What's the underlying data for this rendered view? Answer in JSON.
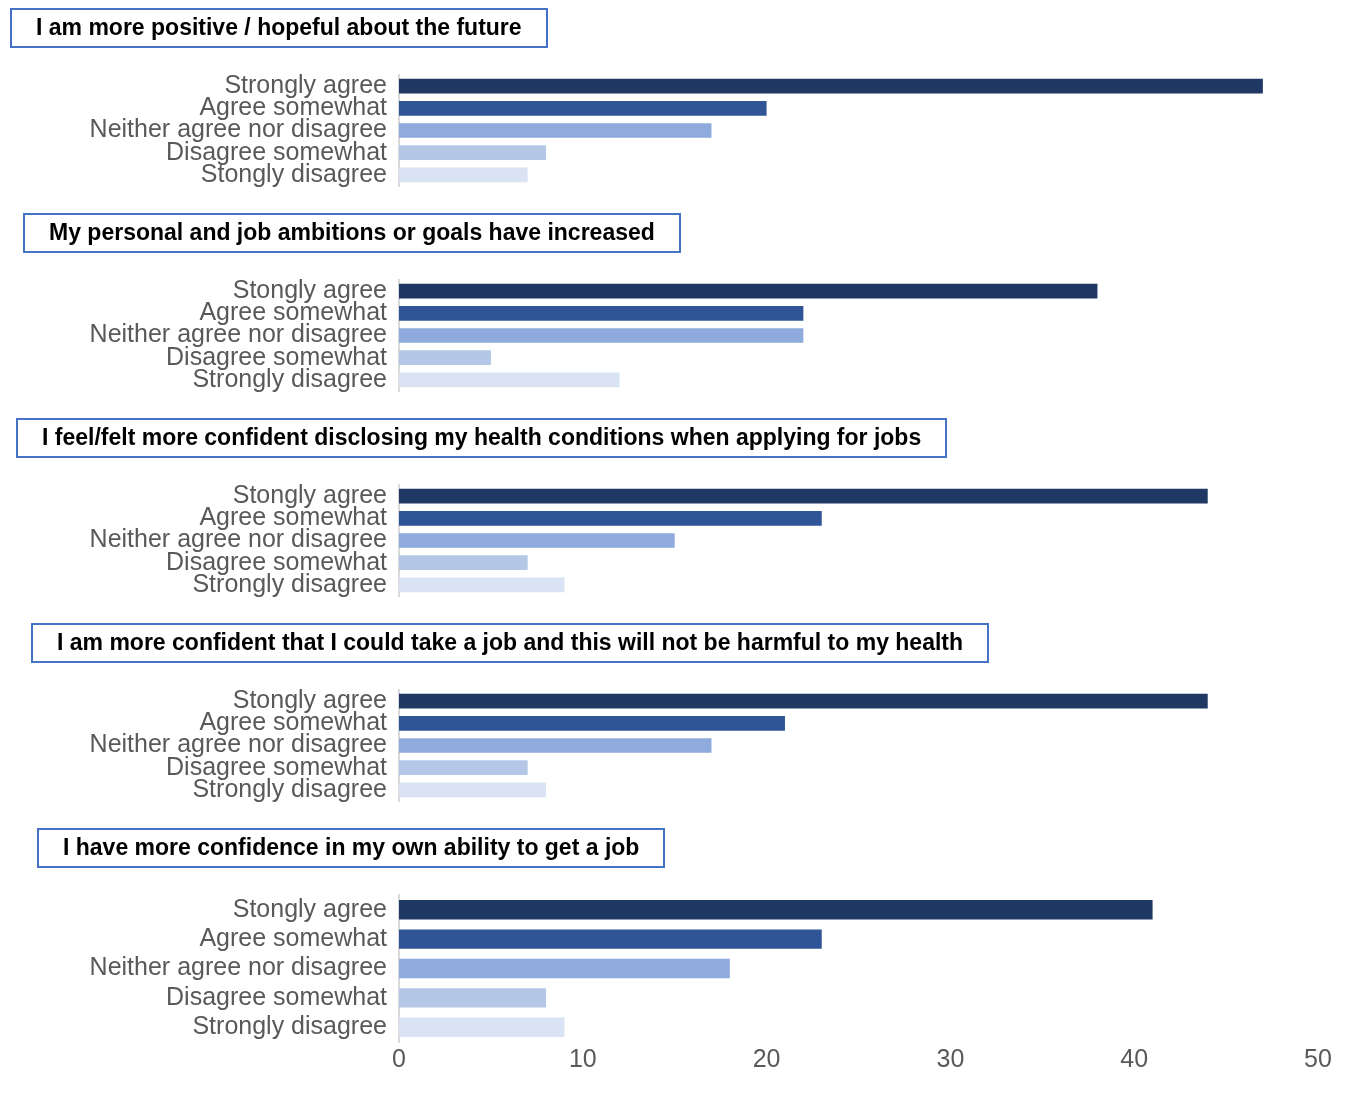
{
  "chart_data": [
    {
      "type": "bar",
      "orientation": "horizontal",
      "title": "I am more positive / hopeful about the future",
      "categories": [
        "Strongly agree",
        "Agree somewhat",
        "Neither agree nor disagree",
        "Disagree somewhat",
        "Stongly disagree"
      ],
      "values": [
        47,
        20,
        17,
        8,
        7
      ],
      "colors": [
        "#203864",
        "#2f5597",
        "#8faadc",
        "#b4c7e7",
        "#dae3f3"
      ],
      "xlim": [
        0,
        50
      ],
      "xticks": [
        0,
        10,
        20,
        30,
        40,
        50
      ],
      "tick_labels": "y"
    },
    {
      "type": "bar",
      "orientation": "horizontal",
      "title": "My personal and job ambitions or goals have increased",
      "categories": [
        "Stongly agree",
        "Agree somewhat",
        "Neither agree nor disagree",
        "Disagree somewhat",
        "Strongly disagree"
      ],
      "values": [
        38,
        22,
        22,
        5,
        12
      ],
      "colors": [
        "#203864",
        "#2f5597",
        "#8faadc",
        "#b4c7e7",
        "#dae3f3"
      ],
      "xlim": [
        0,
        50
      ],
      "xticks": [
        0,
        10,
        20,
        30,
        40,
        50
      ],
      "tick_labels": "y"
    },
    {
      "type": "bar",
      "orientation": "horizontal",
      "title": "I feel/felt more confident disclosing my health conditions when applying for jobs",
      "categories": [
        "Stongly agree",
        "Agree somewhat",
        "Neither agree nor disagree",
        "Disagree somewhat",
        "Strongly disagree"
      ],
      "values": [
        44,
        23,
        15,
        7,
        9
      ],
      "colors": [
        "#203864",
        "#2f5597",
        "#8faadc",
        "#b4c7e7",
        "#dae3f3"
      ],
      "xlim": [
        0,
        50
      ],
      "xticks": [
        0,
        10,
        20,
        30,
        40,
        50
      ],
      "tick_labels": "y"
    },
    {
      "type": "bar",
      "orientation": "horizontal",
      "title": "I am more confident that I could take a job and this will not be harmful to my health",
      "categories": [
        "Stongly agree",
        "Agree somewhat",
        "Neither agree nor disagree",
        "Disagree somewhat",
        "Strongly disagree"
      ],
      "values": [
        44,
        21,
        17,
        7,
        8
      ],
      "colors": [
        "#203864",
        "#2f5597",
        "#8faadc",
        "#b4c7e7",
        "#dae3f3"
      ],
      "xlim": [
        0,
        50
      ],
      "xticks": [
        0,
        10,
        20,
        30,
        40,
        50
      ],
      "tick_labels": "y"
    },
    {
      "type": "bar",
      "orientation": "horizontal",
      "title": "I have more confidence in my own ability to get a job",
      "categories": [
        "Stongly agree",
        "Agree somewhat",
        "Neither agree nor disagree",
        "Disagree somewhat",
        "Strongly disagree"
      ],
      "values": [
        41,
        23,
        18,
        8,
        9
      ],
      "colors": [
        "#203864",
        "#2f5597",
        "#8faadc",
        "#b4c7e7",
        "#dae3f3"
      ],
      "xlim": [
        0,
        50
      ],
      "xticks": [
        0,
        10,
        20,
        30,
        40,
        50
      ]
    }
  ]
}
